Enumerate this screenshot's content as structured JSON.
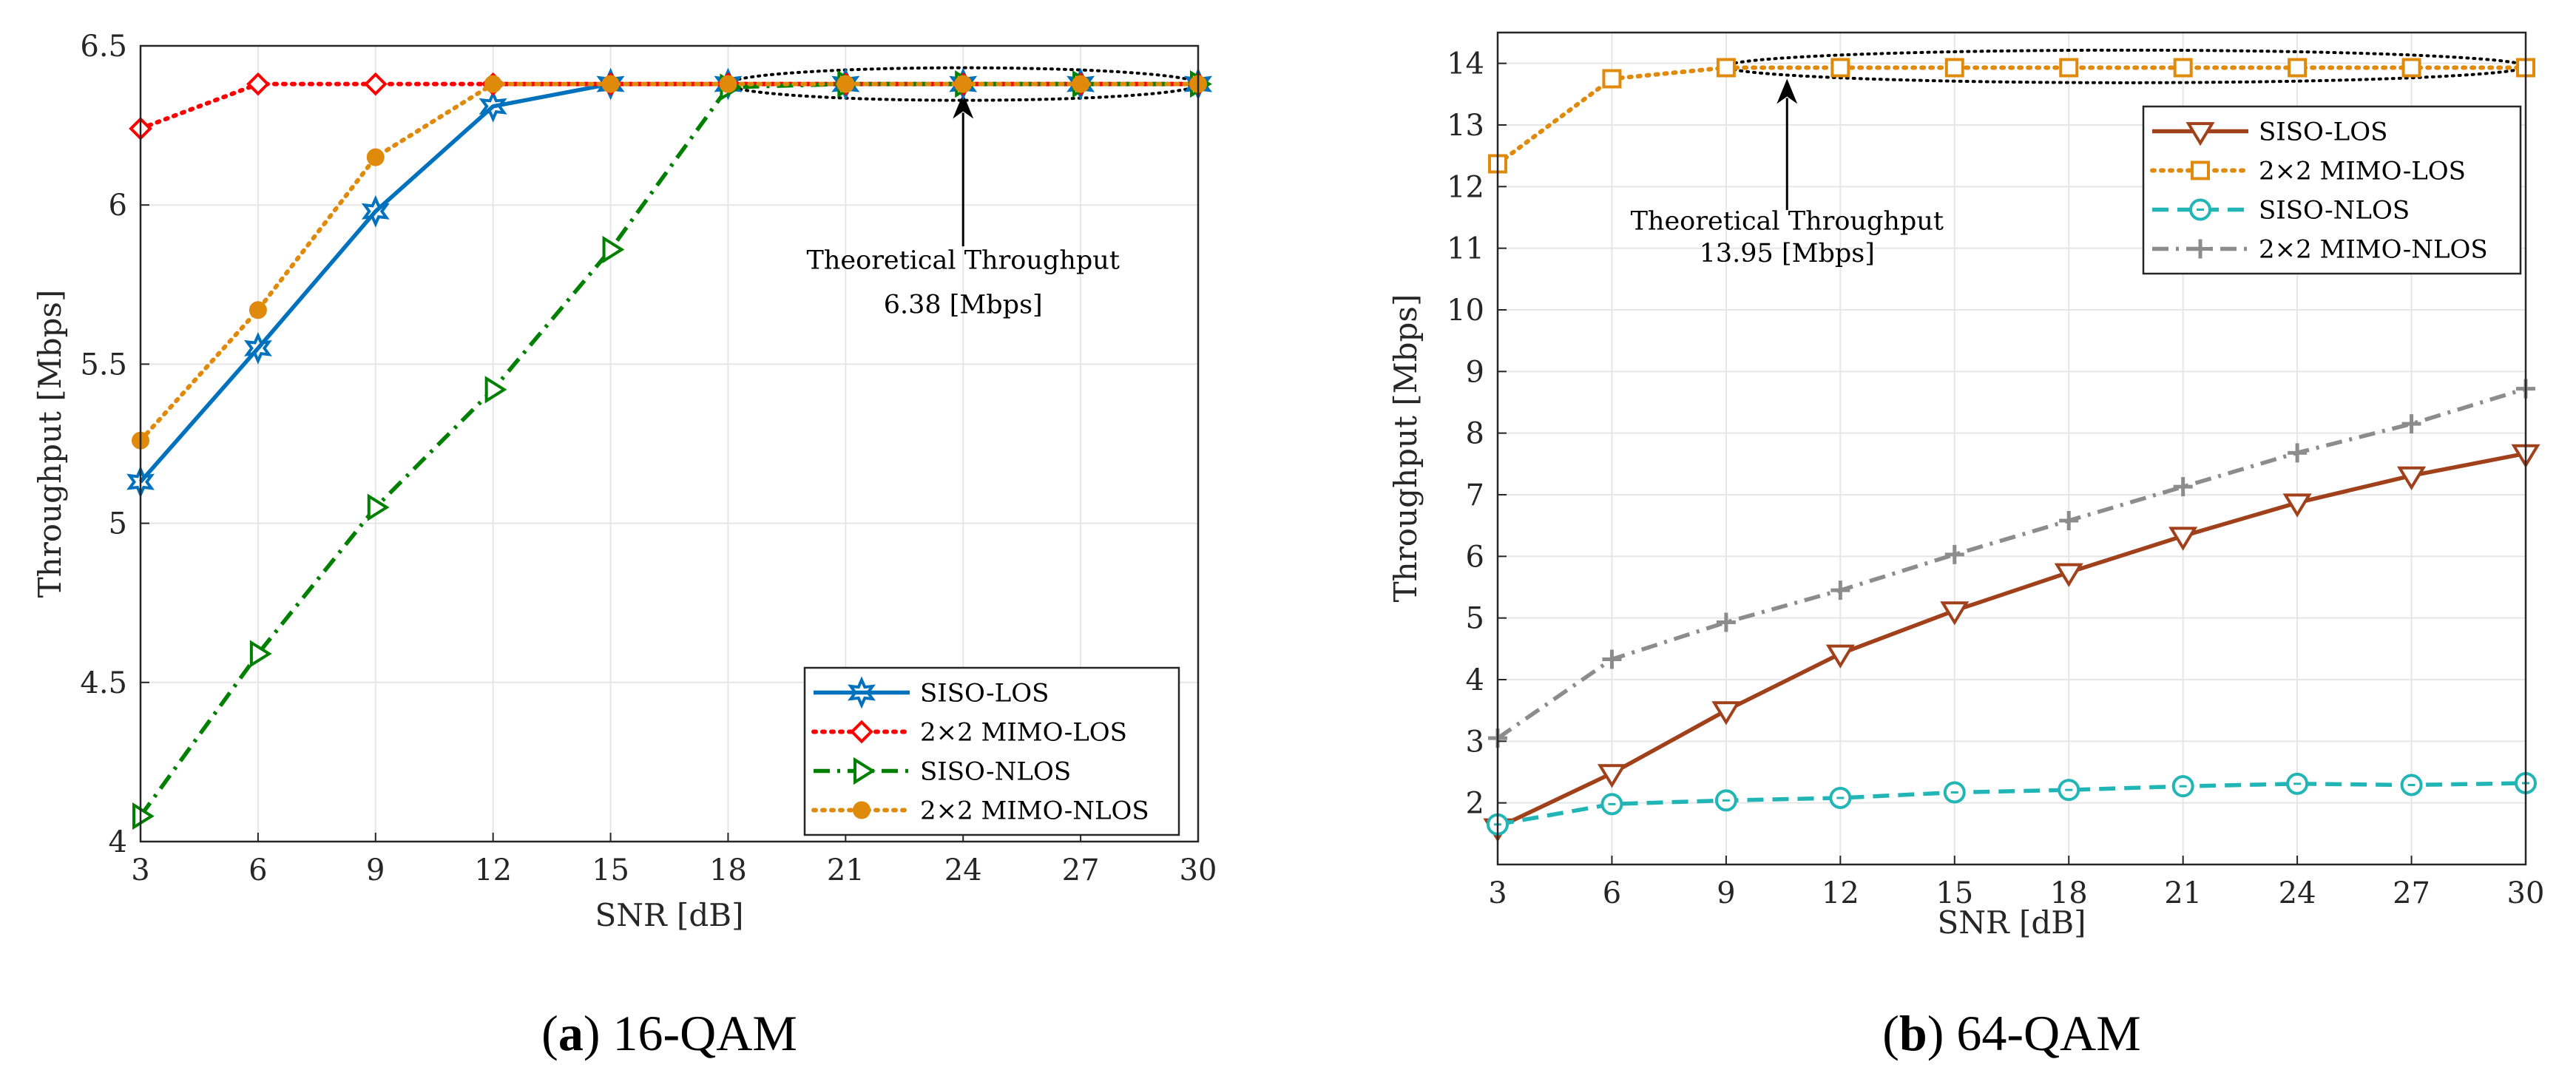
{
  "figure": {
    "captions": [
      {
        "letter": "a",
        "open": "(",
        "close": ")",
        "text": " 16-QAM"
      },
      {
        "letter": "b",
        "open": "(",
        "close": ")",
        "text": " 64-QAM"
      }
    ]
  },
  "chart_data": [
    {
      "type": "line",
      "title": "",
      "xlabel": "SNR [dB]",
      "ylabel": "Throughput [Mbps]",
      "xlim": [
        3,
        30
      ],
      "ylim": [
        4,
        6.5
      ],
      "x": [
        3,
        6,
        9,
        12,
        15,
        18,
        21,
        24,
        27,
        30
      ],
      "xticks": [
        "3",
        "6",
        "9",
        "12",
        "15",
        "18",
        "21",
        "24",
        "27",
        "30"
      ],
      "yticks": [
        {
          "value": 4,
          "label": "4"
        },
        {
          "value": 4.5,
          "label": "4.5"
        },
        {
          "value": 5,
          "label": "5"
        },
        {
          "value": 5.5,
          "label": "5.5"
        },
        {
          "value": 6,
          "label": "6"
        },
        {
          "value": 6.5,
          "label": "6.5"
        }
      ],
      "grid": true,
      "legend_position": "bottom-right",
      "series": [
        {
          "name": "SISO-LOS",
          "color": "#0072bd",
          "dash": "solid",
          "marker": "hexagram",
          "values": [
            5.13,
            5.55,
            5.98,
            6.31,
            6.38,
            6.38,
            6.38,
            6.38,
            6.38,
            6.38
          ]
        },
        {
          "name": "2×2 MIMO-LOS",
          "color": "#ff0000",
          "dash": "dotted",
          "marker": "diamond",
          "values": [
            6.24,
            6.38,
            6.38,
            6.38,
            6.38,
            6.38,
            6.38,
            6.38,
            6.38,
            6.38
          ]
        },
        {
          "name": "SISO-NLOS",
          "color": "#008000",
          "dash": "dashdot",
          "marker": "triangle-right",
          "values": [
            4.08,
            4.59,
            5.05,
            5.42,
            5.86,
            6.37,
            6.38,
            6.38,
            6.38,
            6.38
          ]
        },
        {
          "name": "2×2 MIMO-NLOS",
          "color": "#e08a0b",
          "dash": "dotted",
          "marker": "circle-filled",
          "values": [
            5.26,
            5.67,
            6.15,
            6.38,
            6.38,
            6.38,
            6.38,
            6.38,
            6.38,
            6.38
          ]
        }
      ],
      "annotation": {
        "lines": [
          "Theoretical Throughput",
          "6.38 [Mbps]"
        ],
        "value": 6.38,
        "ellipse_x": [
          18,
          30
        ],
        "arrow_x": 24,
        "text_x": 24,
        "text_y": [
          5.8,
          5.66
        ],
        "arrow_from_y": 5.87,
        "arrow_to_y": 6.35
      }
    },
    {
      "type": "line",
      "title": "",
      "xlabel": "SNR [dB]",
      "ylabel": "Throughput [Mbps]",
      "xlim": [
        3,
        30
      ],
      "ylim": [
        1,
        14.5
      ],
      "x": [
        3,
        6,
        9,
        12,
        15,
        18,
        21,
        24,
        27,
        30
      ],
      "xticks": [
        "3",
        "6",
        "9",
        "12",
        "15",
        "18",
        "21",
        "24",
        "27",
        "30"
      ],
      "yticks": [
        {
          "value": 2,
          "label": "2"
        },
        {
          "value": 3,
          "label": "3"
        },
        {
          "value": 4,
          "label": "4"
        },
        {
          "value": 5,
          "label": "5"
        },
        {
          "value": 6,
          "label": "6"
        },
        {
          "value": 7,
          "label": "7"
        },
        {
          "value": 8,
          "label": "8"
        },
        {
          "value": 9,
          "label": "9"
        },
        {
          "value": 10,
          "label": "10"
        },
        {
          "value": 11,
          "label": "11"
        },
        {
          "value": 12,
          "label": "12"
        },
        {
          "value": 13,
          "label": "13"
        },
        {
          "value": 14,
          "label": "14"
        }
      ],
      "grid": true,
      "legend_position": "top-right",
      "series": [
        {
          "name": "SISO-LOS",
          "color": "#a0411c",
          "dash": "solid",
          "marker": "triangle-down",
          "values": [
            1.6,
            2.48,
            3.5,
            4.42,
            5.12,
            5.74,
            6.33,
            6.87,
            7.31,
            7.67
          ]
        },
        {
          "name": "2×2 MIMO-LOS",
          "color": "#e08a0b",
          "dash": "dotted",
          "marker": "square",
          "values": [
            12.37,
            13.75,
            13.93,
            13.93,
            13.93,
            13.93,
            13.93,
            13.93,
            13.93,
            13.93
          ]
        },
        {
          "name": "SISO-NLOS",
          "color": "#22b5b5",
          "dash": "dashed",
          "marker": "circle-dot",
          "values": [
            1.65,
            1.98,
            2.04,
            2.08,
            2.17,
            2.21,
            2.27,
            2.31,
            2.29,
            2.32
          ]
        },
        {
          "name": "2×2 MIMO-NLOS",
          "color": "#8c8c8c",
          "dash": "dashdot",
          "marker": "plus",
          "values": [
            3.05,
            4.33,
            4.93,
            5.45,
            6.03,
            6.58,
            7.13,
            7.68,
            8.15,
            8.72
          ]
        }
      ],
      "annotation": {
        "lines": [
          "Theoretical Throughput",
          "13.95 [Mbps]"
        ],
        "value": 13.95,
        "ellipse_x": [
          9,
          30
        ],
        "arrow_x": 10.6,
        "text_x": 10.6,
        "text_y": [
          11.3,
          10.78
        ],
        "arrow_from_y": 11.62,
        "arrow_to_y": 13.75
      }
    }
  ]
}
